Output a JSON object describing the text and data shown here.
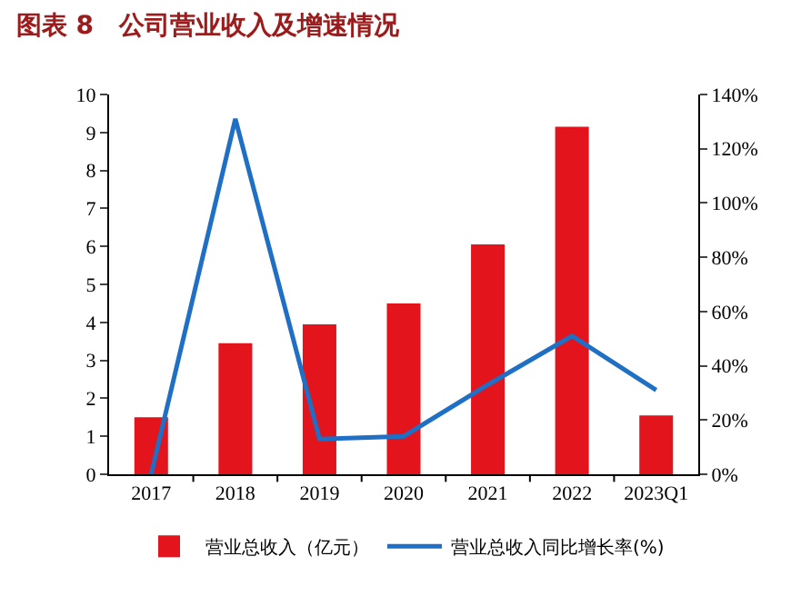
{
  "chart_data": {
    "type": "bar",
    "title": "图表 8　公司营业收入及增速情况",
    "categories": [
      "2017",
      "2018",
      "2019",
      "2020",
      "2021",
      "2022",
      "2023Q1"
    ],
    "series": [
      {
        "name": "营业总收入（亿元）",
        "color": "#e3141b",
        "values": [
          1.5,
          3.45,
          3.95,
          4.5,
          6.05,
          9.15,
          1.55
        ]
      },
      {
        "name": "营业总收入同比增长率(%)",
        "type": "line",
        "axis": "y2",
        "color": "#1f6fc5",
        "values": [
          0,
          131,
          13,
          14,
          33,
          51,
          31
        ]
      }
    ],
    "ylim": [
      0,
      10
    ],
    "yticks": [
      0,
      1,
      2,
      3,
      4,
      5,
      6,
      7,
      8,
      9,
      10
    ],
    "y2lim": [
      0,
      140
    ],
    "y2ticks": [
      {
        "value": 0,
        "label": "0%"
      },
      {
        "value": 20,
        "label": "20%"
      },
      {
        "value": 40,
        "label": "40%"
      },
      {
        "value": 60,
        "label": "60%"
      },
      {
        "value": 80,
        "label": "80%"
      },
      {
        "value": 100,
        "label": "100%"
      },
      {
        "value": 120,
        "label": "120%"
      },
      {
        "value": 140,
        "label": "140%"
      }
    ],
    "grid": false,
    "legend": "bottom",
    "marker": "none"
  }
}
